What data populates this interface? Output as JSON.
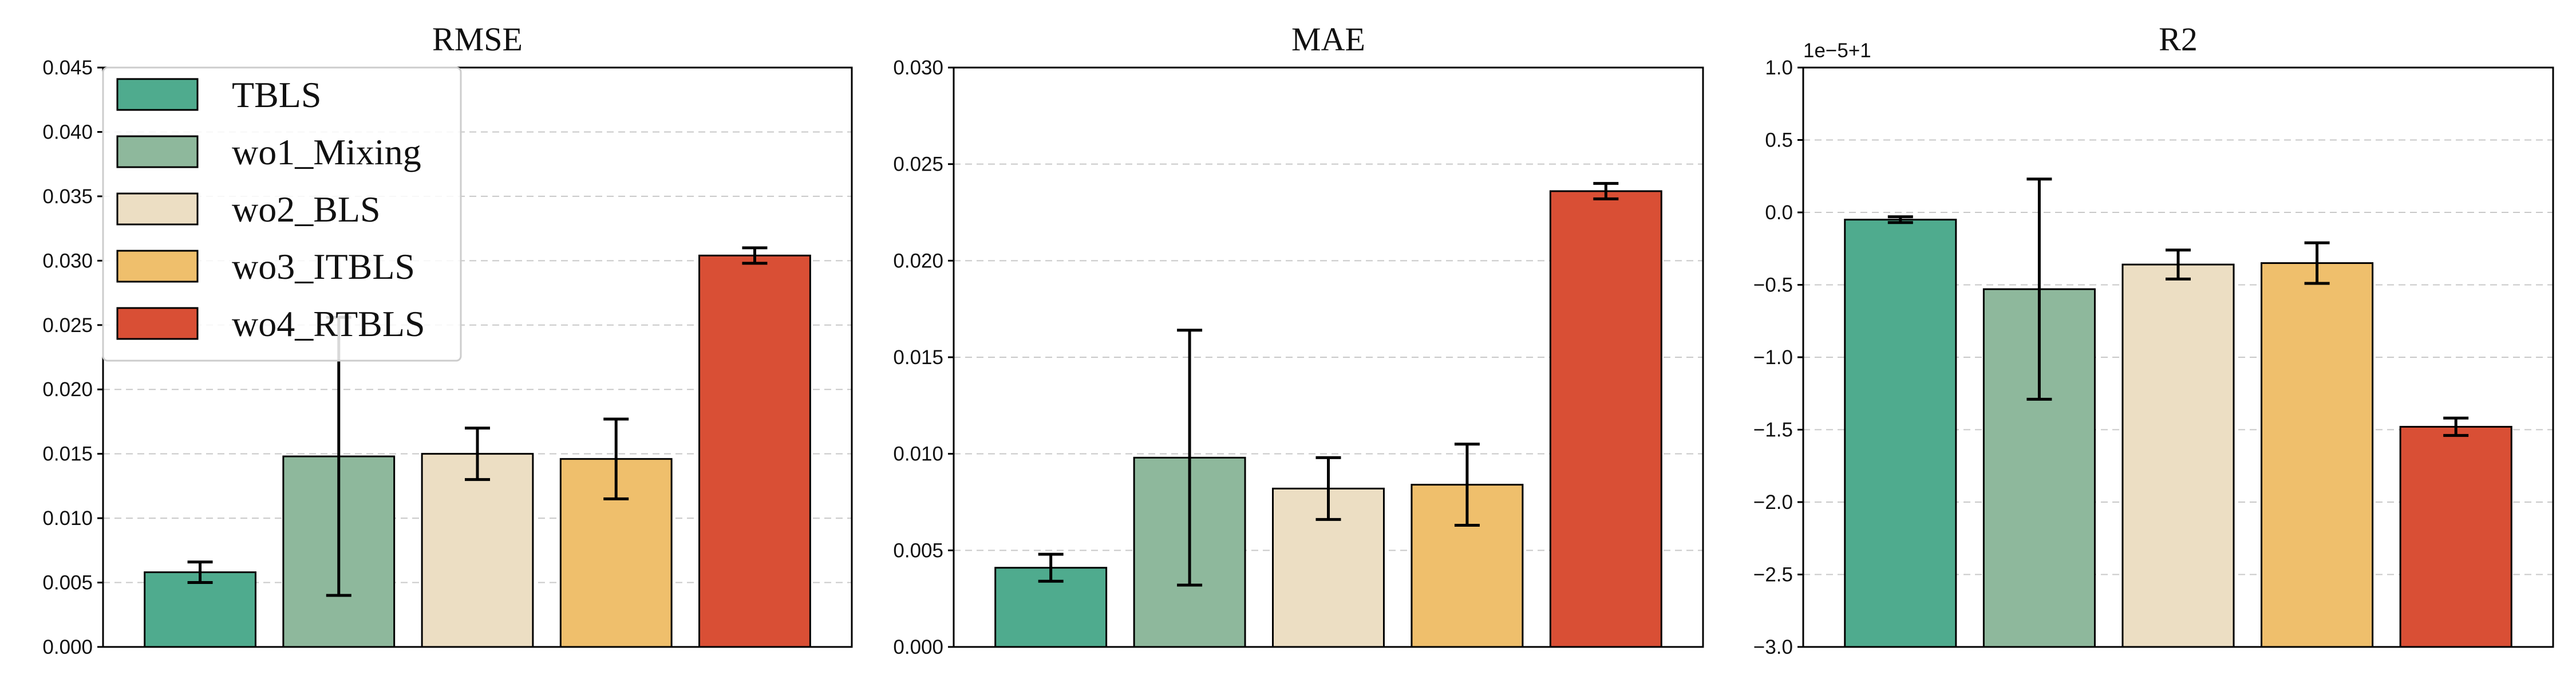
{
  "chart_data": [
    {
      "type": "bar",
      "title": "RMSE",
      "categories": [
        "TBLS",
        "wo1_Mixing",
        "wo2_BLS",
        "wo3_ITBLS",
        "wo4_RTBLS"
      ],
      "values": [
        0.0058,
        0.0148,
        0.015,
        0.0146,
        0.0304
      ],
      "errors": [
        0.0008,
        0.0108,
        0.002,
        0.0031,
        0.0006
      ],
      "ylim": [
        0,
        0.045
      ],
      "yticks": [
        "0.000",
        "0.005",
        "0.010",
        "0.015",
        "0.020",
        "0.025",
        "0.030",
        "0.035",
        "0.040",
        "0.045"
      ],
      "ytick_values": [
        0,
        0.005,
        0.01,
        0.015,
        0.02,
        0.025,
        0.03,
        0.035,
        0.04,
        0.045
      ],
      "offset_label": "",
      "grid": true,
      "legend": "upper left"
    },
    {
      "type": "bar",
      "title": "MAE",
      "categories": [
        "TBLS",
        "wo1_Mixing",
        "wo2_BLS",
        "wo3_ITBLS",
        "wo4_RTBLS"
      ],
      "values": [
        0.0041,
        0.0098,
        0.0082,
        0.0084,
        0.0236
      ],
      "errors": [
        0.0007,
        0.0066,
        0.0016,
        0.0021,
        0.0004
      ],
      "ylim": [
        0,
        0.03
      ],
      "yticks": [
        "0.000",
        "0.005",
        "0.010",
        "0.015",
        "0.020",
        "0.025",
        "0.030"
      ],
      "ytick_values": [
        0,
        0.005,
        0.01,
        0.015,
        0.02,
        0.025,
        0.03
      ],
      "offset_label": "",
      "grid": true
    },
    {
      "type": "bar",
      "title": "R2",
      "categories": [
        "TBLS",
        "wo1_Mixing",
        "wo2_BLS",
        "wo3_ITBLS",
        "wo4_RTBLS"
      ],
      "values": [
        -0.05,
        -0.53,
        -0.36,
        -0.35,
        -1.48
      ],
      "errors": [
        0.02,
        0.76,
        0.1,
        0.14,
        0.06
      ],
      "ylim": [
        -3.0,
        1.0
      ],
      "yticks": [
        "−3.0",
        "−2.5",
        "−2.0",
        "−1.5",
        "−1.0",
        "−0.5",
        "0.0",
        "0.5",
        "1.0"
      ],
      "ytick_values": [
        -3.0,
        -2.5,
        -2.0,
        -1.5,
        -1.0,
        -0.5,
        0.0,
        0.5,
        1.0
      ],
      "offset_label": "1e−5+1",
      "grid": true
    }
  ],
  "legend": {
    "items": [
      {
        "label": "TBLS",
        "color": "#4fab8e"
      },
      {
        "label": "wo1_Mixing",
        "color": "#8eb89c"
      },
      {
        "label": "wo2_BLS",
        "color": "#ecdec3"
      },
      {
        "label": "wo3_ITBLS",
        "color": "#efbf6c"
      },
      {
        "label": "wo4_RTBLS",
        "color": "#d94f35"
      }
    ]
  },
  "colors": [
    "#4fab8e",
    "#8eb89c",
    "#ecdec3",
    "#efbf6c",
    "#d94f35"
  ]
}
